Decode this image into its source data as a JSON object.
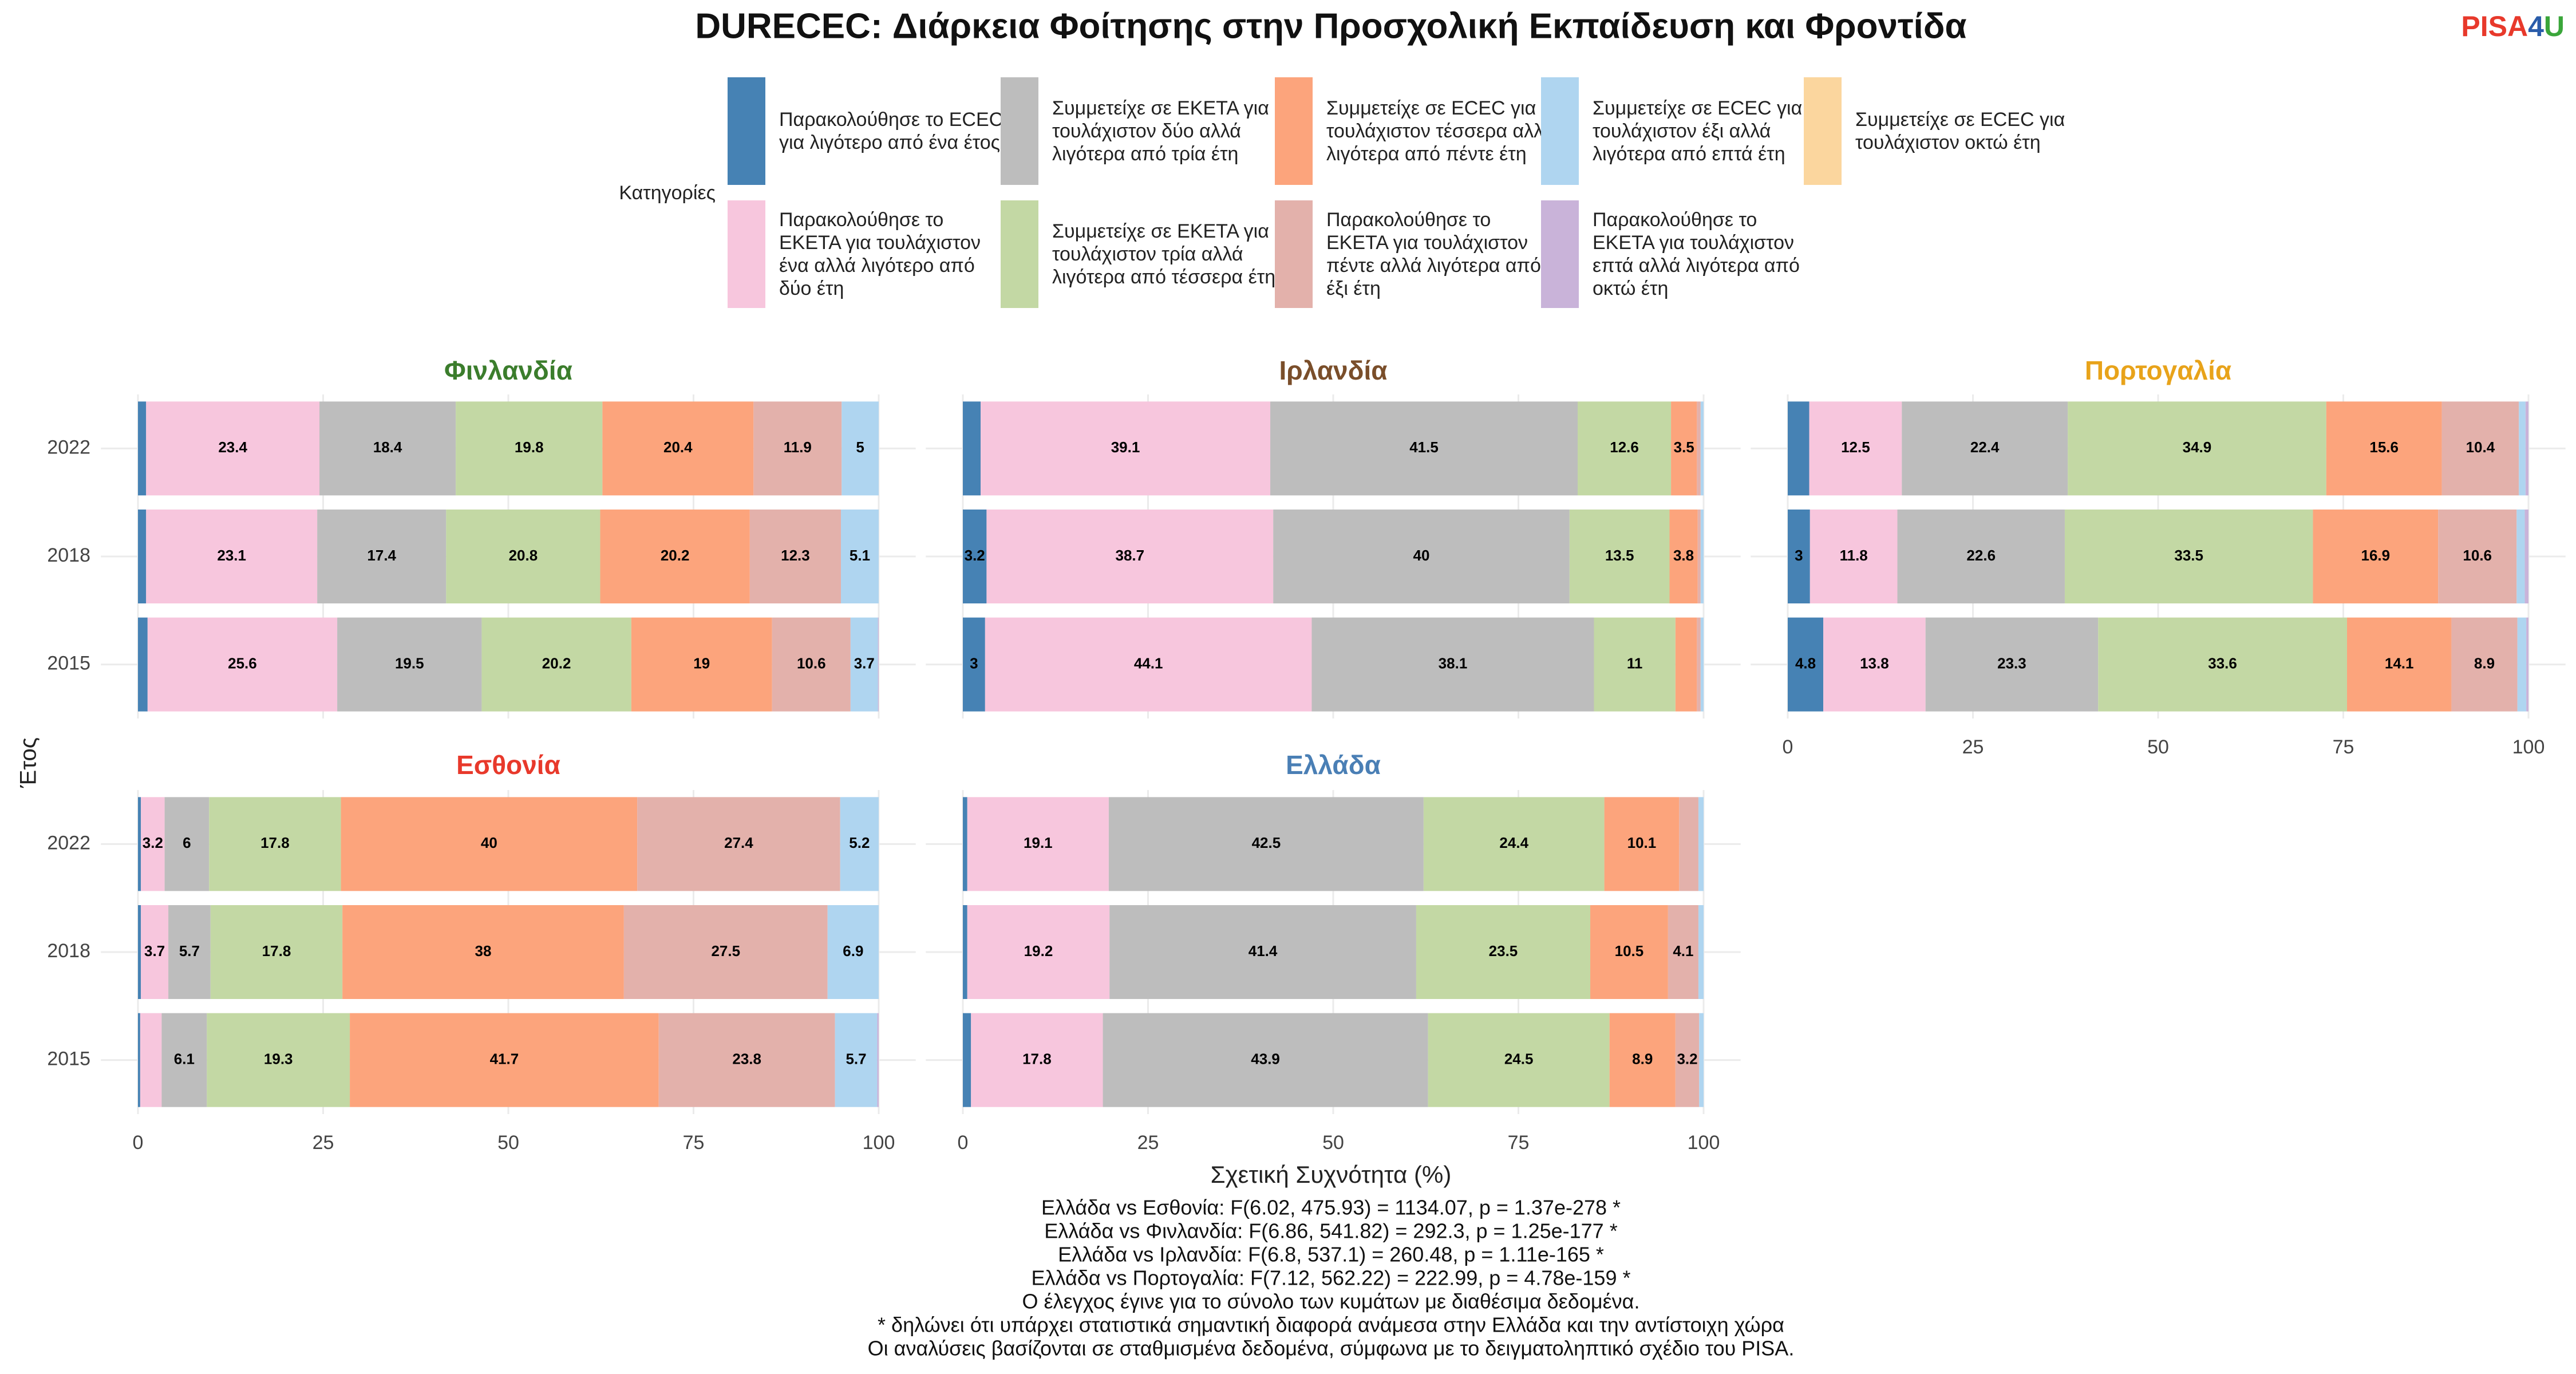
{
  "chart_data": {
    "type": "stacked-barh",
    "title": "DURECEC: Διάρκεια Φοίτησης στην Προσχολική Εκπαίδευση και Φροντίδα",
    "logo": [
      "PISA",
      "4",
      "U"
    ],
    "legend_title": "Κατηγορίες",
    "y_label": "Έτος",
    "x_label": "Σχετική Συχνότητα (%)",
    "xlim": [
      0,
      100
    ],
    "xticks": [
      0,
      25,
      50,
      75,
      100
    ],
    "grid": true,
    "categories": [
      "2022",
      "2018",
      "2015"
    ],
    "series": [
      {
        "name": "Παρακολούθησε το ECEC για λιγότερο από ένα έτος",
        "color": "#4682b4"
      },
      {
        "name": "Παρακολούθησε το ΕΚΕΤΑ για τουλάχιστον ένα αλλά λιγότερο από δύο έτη",
        "color": "#f7c6dd"
      },
      {
        "name": "Συμμετείχε σε ΕΚΕΤΑ για τουλάχιστον δύο αλλά λιγότερα από τρία έτη",
        "color": "#bdbdbd"
      },
      {
        "name": "Συμμετείχε σε ΕΚΕΤΑ για τουλάχιστον τρία αλλά λιγότερα από τέσσερα έτη",
        "color": "#c3d8a4"
      },
      {
        "name": "Συμμετείχε σε ECEC για τουλάχιστον τέσσερα αλλά λιγότερα από πέντε έτη",
        "color": "#fca47c"
      },
      {
        "name": "Παρακολούθησε το ΕΚΕΤΑ για τουλάχιστον πέντε αλλά λιγότερα από έξι έτη",
        "color": "#e3b1ab"
      },
      {
        "name": "Συμμετείχε σε ECEC για τουλάχιστον έξι αλλά λιγότερα από επτά έτη",
        "color": "#afd5f0"
      },
      {
        "name": "Παρακολούθησε το ΕΚΕΤΑ για τουλάχιστον επτά αλλά λιγότερα από οκτώ έτη",
        "color": "#c9b3d9"
      },
      {
        "name": "Συμμετείχε σε ECEC για τουλάχιστον οκτώ έτη",
        "color": "#fbd69e"
      }
    ],
    "facets": [
      {
        "title": "Φινλανδία",
        "title_color": "#3b7d2c",
        "values": [
          [
            1.1,
            1.1,
            1.3
          ],
          [
            23.4,
            23.1,
            25.6
          ],
          [
            18.4,
            17.4,
            19.5
          ],
          [
            19.8,
            20.8,
            20.2
          ],
          [
            20.4,
            20.2,
            19
          ],
          [
            11.9,
            12.3,
            10.6
          ],
          [
            5,
            5.1,
            3.7
          ],
          [
            0,
            0,
            0.1
          ],
          [
            0,
            0,
            0
          ]
        ]
      },
      {
        "title": "Ιρλανδία",
        "title_color": "#7a4e2a",
        "values": [
          [
            2.4,
            3.2,
            3
          ],
          [
            39.1,
            38.7,
            44.1
          ],
          [
            41.5,
            40,
            38.1
          ],
          [
            12.6,
            13.5,
            11
          ],
          [
            3.5,
            3.8,
            2.9
          ],
          [
            0.5,
            0.4,
            0.5
          ],
          [
            0.4,
            0.4,
            0.4
          ],
          [
            0,
            0,
            0
          ],
          [
            0,
            0,
            0
          ]
        ]
      },
      {
        "title": "Πορτογαλία",
        "title_color": "#e8a31a",
        "values": [
          [
            2.9,
            3,
            4.8
          ],
          [
            12.5,
            11.8,
            13.8
          ],
          [
            22.4,
            22.6,
            23.3
          ],
          [
            34.9,
            33.5,
            33.6
          ],
          [
            15.6,
            16.9,
            14.1
          ],
          [
            10.4,
            10.6,
            8.9
          ],
          [
            0.9,
            1.1,
            1.2
          ],
          [
            0.4,
            0.5,
            0.3
          ],
          [
            0,
            0,
            0
          ]
        ]
      },
      {
        "title": "Εσθονία",
        "title_color": "#e8392b",
        "values": [
          [
            0.4,
            0.4,
            0.3
          ],
          [
            3.2,
            3.7,
            2.9
          ],
          [
            6,
            5.7,
            6.1
          ],
          [
            17.8,
            17.8,
            19.3
          ],
          [
            40,
            38,
            41.7
          ],
          [
            27.4,
            27.5,
            23.8
          ],
          [
            5.2,
            6.9,
            5.7
          ],
          [
            0,
            0,
            0.2
          ],
          [
            0,
            0,
            0
          ]
        ]
      },
      {
        "title": "Ελλάδα",
        "title_color": "#4a7fb5",
        "values": [
          [
            0.6,
            0.6,
            1.1
          ],
          [
            19.1,
            19.2,
            17.8
          ],
          [
            42.5,
            41.4,
            43.9
          ],
          [
            24.4,
            23.5,
            24.5
          ],
          [
            10.1,
            10.5,
            8.9
          ],
          [
            2.6,
            4.1,
            3.2
          ],
          [
            0.7,
            0.7,
            0.6
          ],
          [
            0,
            0,
            0
          ],
          [
            0,
            0,
            0
          ]
        ]
      }
    ],
    "notes": [
      "Ελλάδα vs Εσθονία: F(6.02, 475.93) = 1134.07, p = 1.37e-278 *",
      "Ελλάδα vs Φινλανδία: F(6.86, 541.82) = 292.3, p = 1.25e-177 *",
      "Ελλάδα vs Ιρλανδία: F(6.8, 537.1) = 260.48, p = 1.11e-165 *",
      "Ελλάδα vs Πορτογαλία: F(7.12, 562.22) = 222.99, p = 4.78e-159 *",
      "Ο έλεγχος έγινε για το σύνολο των κυμάτων με διαθέσιμα δεδομένα.",
      "* δηλώνει ότι υπάρχει στατιστικά σημαντική διαφορά ανάμεσα στην Ελλάδα και την αντίστοιχη χώρα",
      "Οι αναλύσεις βασίζονται σε σταθμισμένα δεδομένα, σύμφωνα με το δειγματοληπτικό σχέδιο του PISA."
    ]
  }
}
